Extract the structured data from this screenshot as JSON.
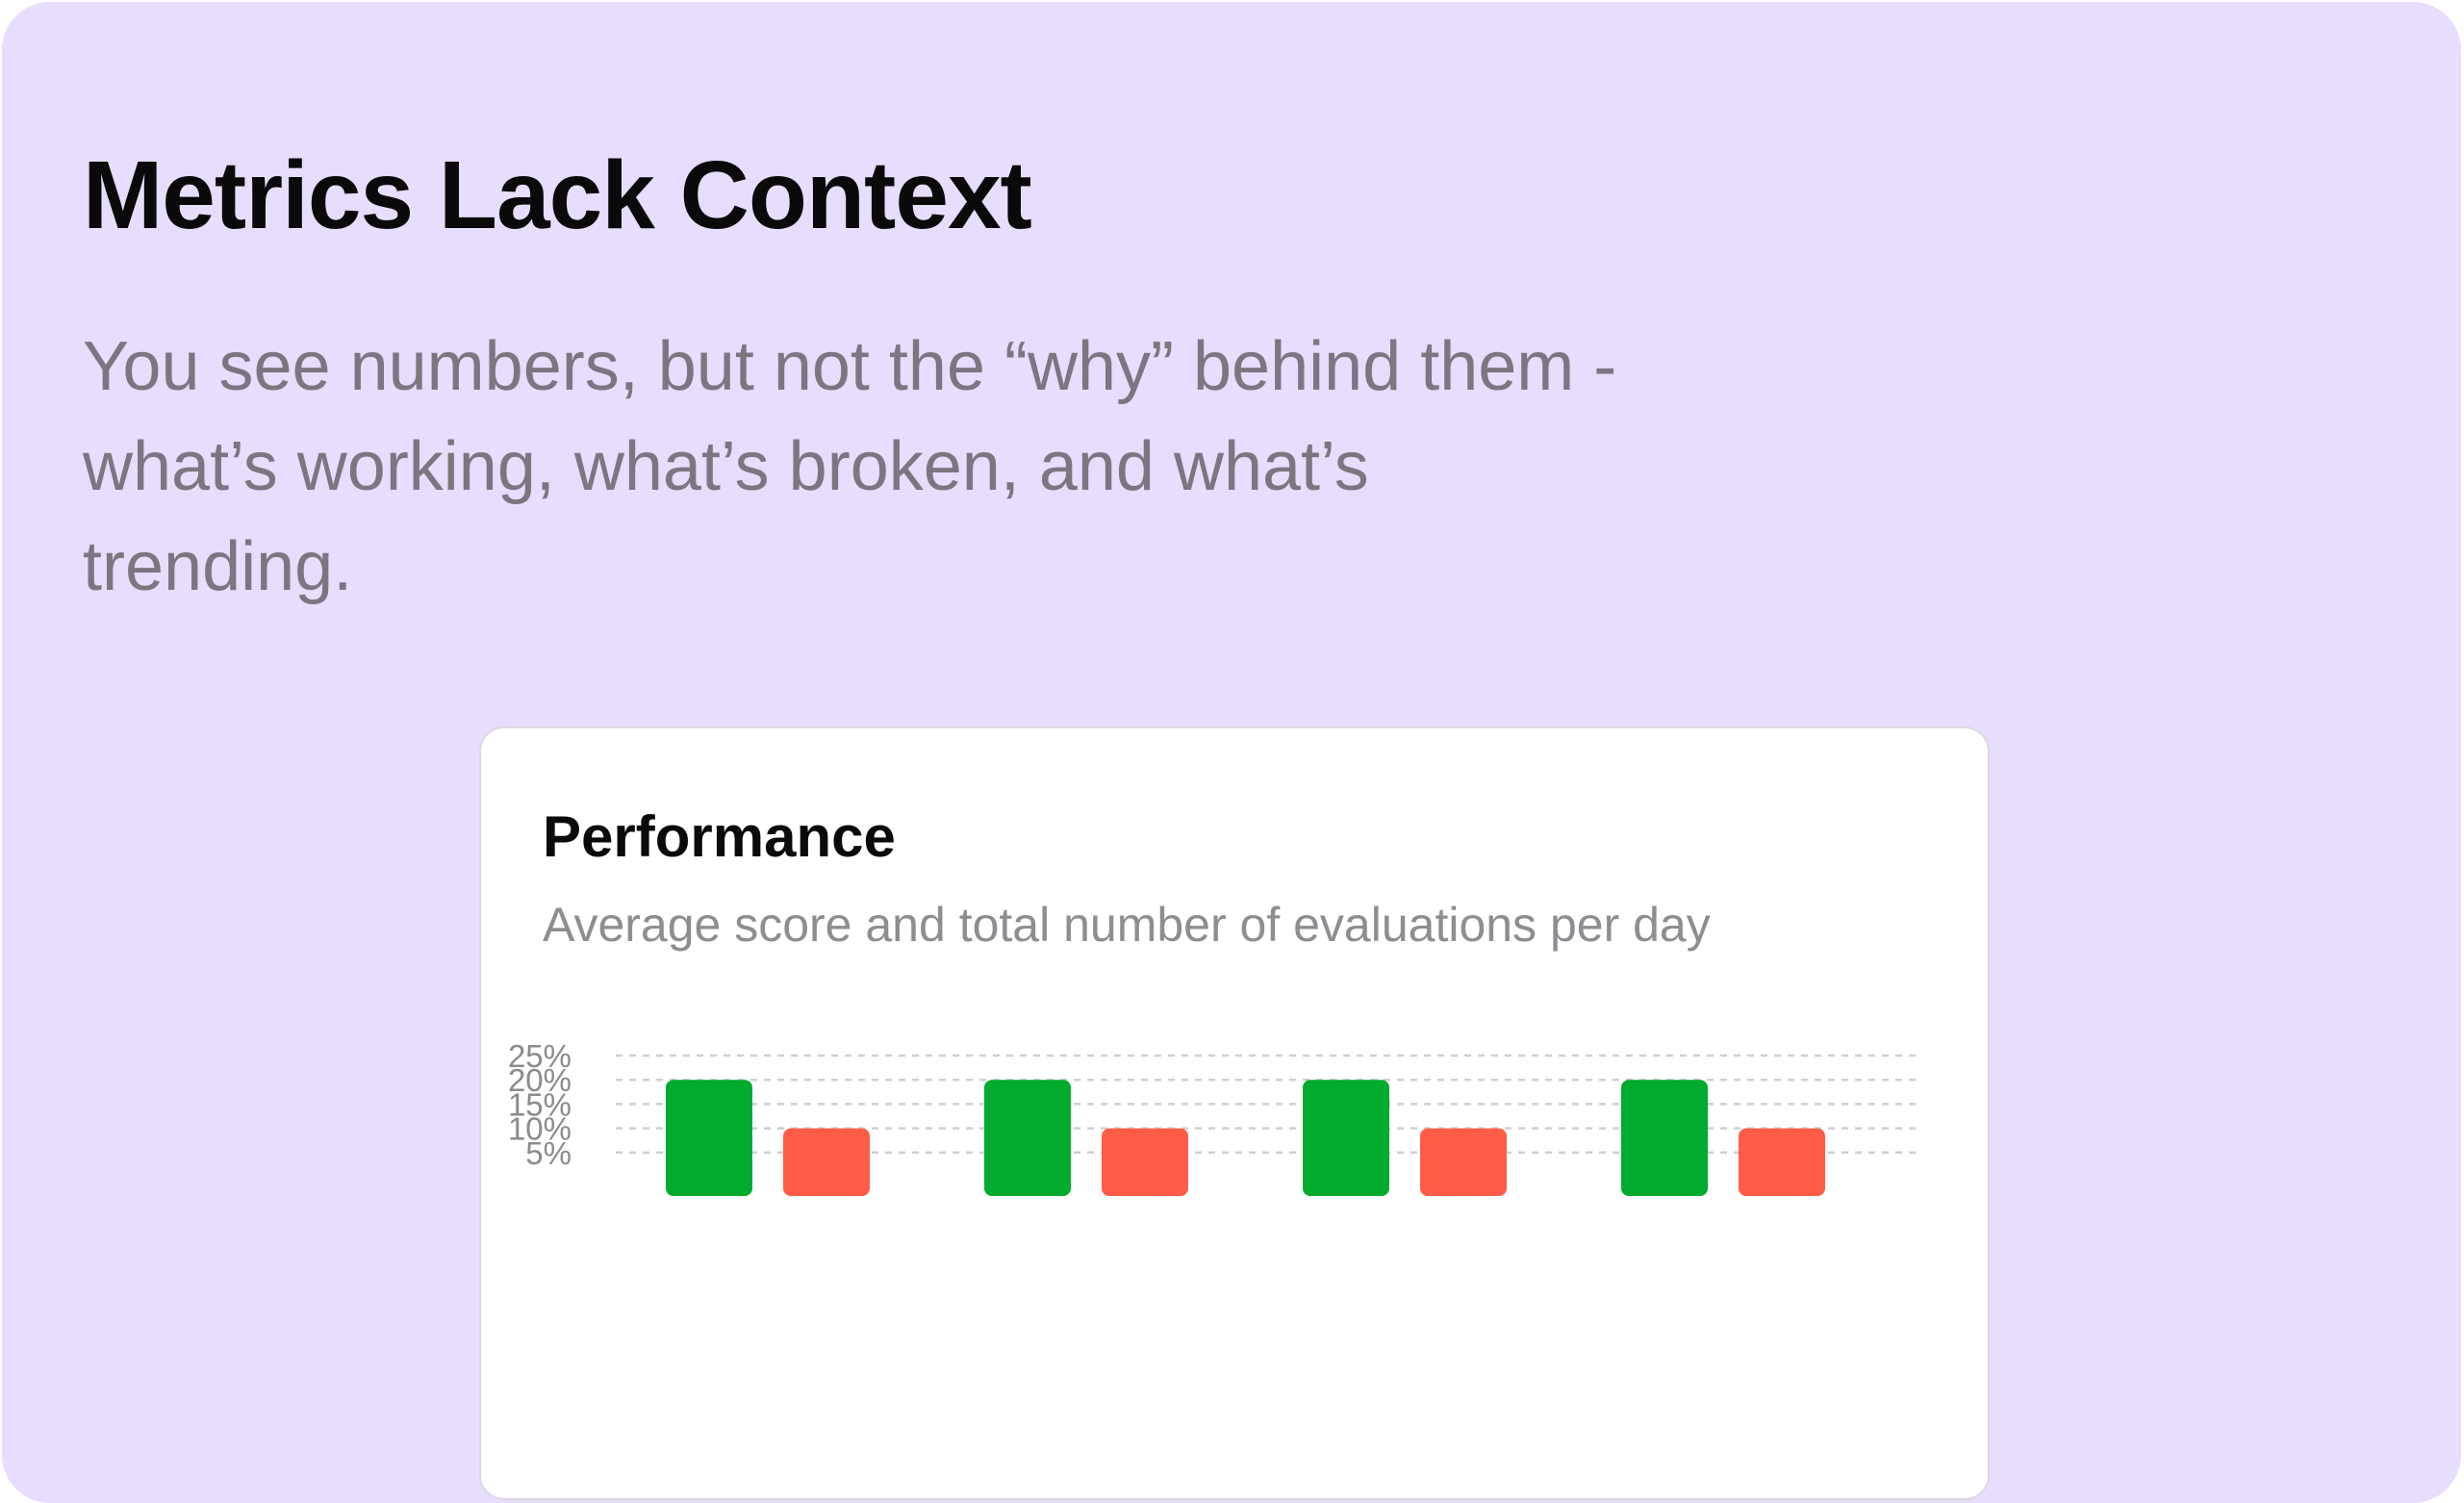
{
  "header": {
    "title": "Metrics Lack Context",
    "description_lines": [
      "You see numbers, but not the “why” behind them -",
      "what’s working, what’s broken, and what’s",
      "trending."
    ]
  },
  "card": {
    "title": "Performance",
    "subtitle": "Average score and total number of evaluations per day"
  },
  "colors": {
    "background": "#e7ddfd",
    "green_bar": "#00ab2d",
    "red_bar": "#ff5c48"
  },
  "chart_data": {
    "type": "bar",
    "y_tick_labels": [
      "25%",
      "20%",
      "15%",
      "10%",
      "5%"
    ],
    "ylim": [
      0,
      25
    ],
    "grid": true,
    "gridline_style": "dashed",
    "categories": [
      "",
      "",
      "",
      ""
    ],
    "series": [
      {
        "values": [
          20,
          20,
          20,
          20
        ],
        "color": "#00ab2d"
      },
      {
        "values": [
          10,
          10,
          10,
          10
        ],
        "color": "#ff5c48"
      }
    ]
  }
}
